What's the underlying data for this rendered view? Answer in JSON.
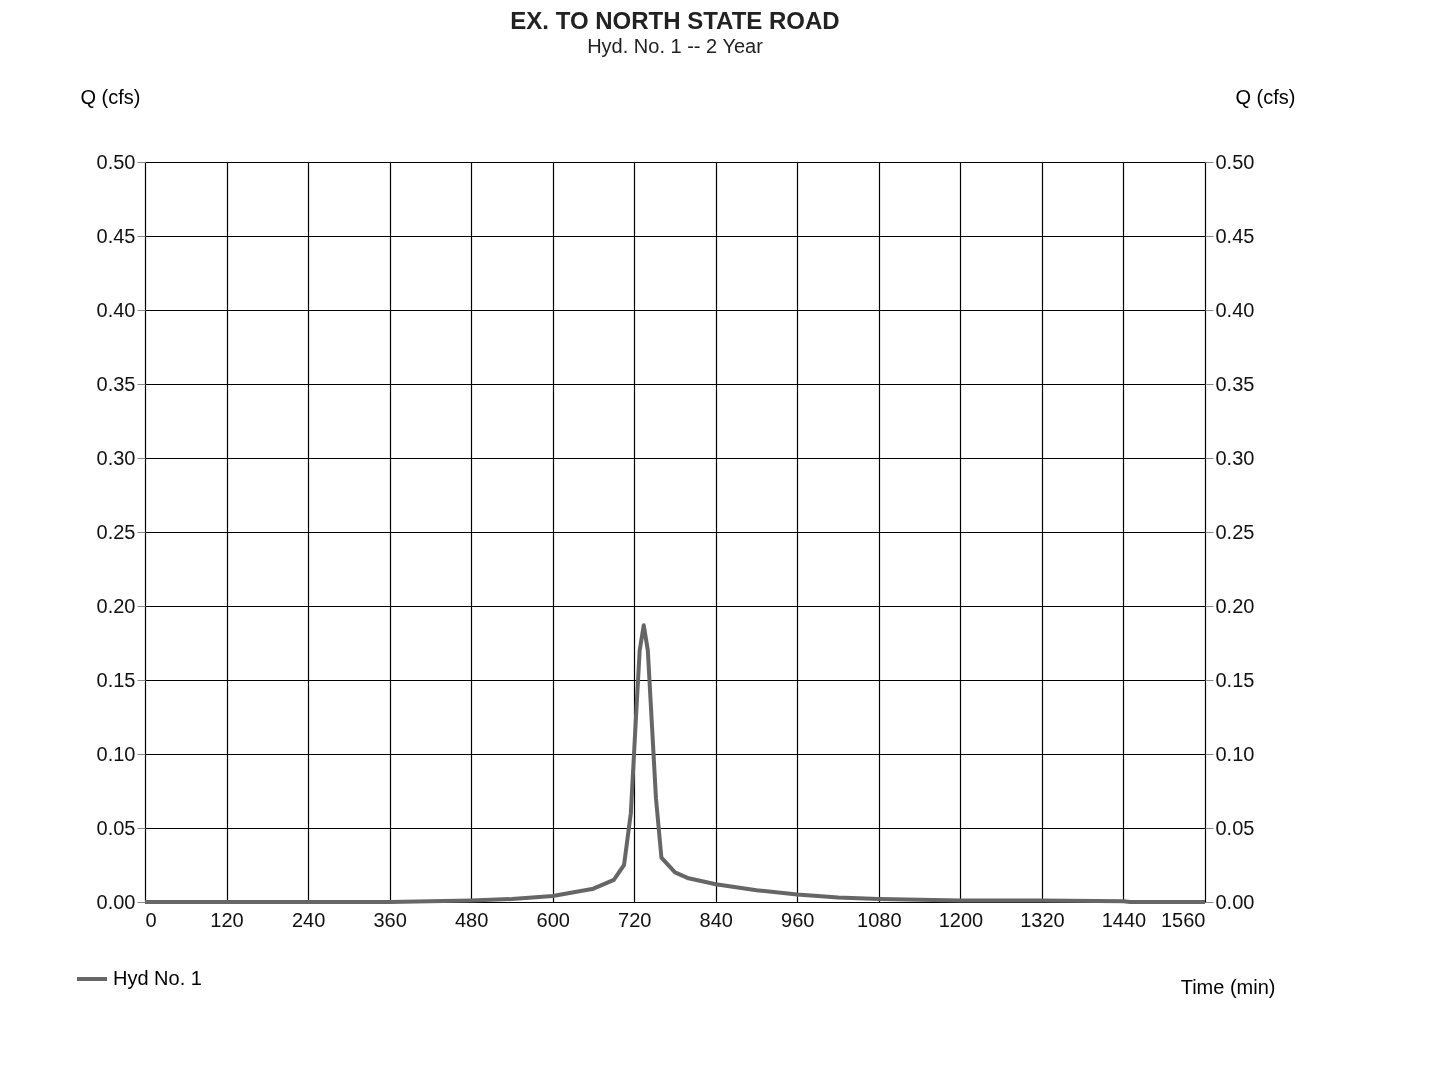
{
  "chart_data": {
    "type": "line",
    "title": "EX. TO NORTH STATE ROAD",
    "subtitle": "Hyd. No. 1 -- 2 Year",
    "xlabel": "Time (min)",
    "ylabel": "Q (cfs)",
    "y2label": "Q (cfs)",
    "xlim": [
      0,
      1560
    ],
    "xticks": [
      0,
      120,
      240,
      360,
      480,
      600,
      720,
      840,
      960,
      1080,
      1200,
      1320,
      1440,
      1560
    ],
    "ylim": [
      0,
      0.5
    ],
    "yticks": [
      {
        "value": 0,
        "label": "0.00"
      },
      0.05,
      {
        "value": 0.1,
        "label": "0.10"
      },
      0.15,
      {
        "value": 0.2,
        "label": "0.20"
      },
      0.25,
      {
        "value": 0.3,
        "label": "0.30"
      },
      0.35,
      {
        "value": 0.4,
        "label": "0.40"
      },
      0.45,
      {
        "value": 0.5,
        "label": "0.50"
      }
    ],
    "y2lim": [
      0,
      0.5
    ],
    "y2ticks": [
      {
        "value": 0,
        "label": "0.00"
      },
      0.05,
      {
        "value": 0.1,
        "label": "0.10"
      },
      0.15,
      {
        "value": 0.2,
        "label": "0.20"
      },
      0.25,
      {
        "value": 0.3,
        "label": "0.30"
      },
      0.35,
      {
        "value": 0.4,
        "label": "0.40"
      },
      0.45,
      {
        "value": 0.5,
        "label": "0.50"
      }
    ],
    "grid": true,
    "legend": "bottom left",
    "marker": "none",
    "line_style": "solid",
    "series": [
      {
        "name": "Hyd No. 1",
        "color": "#666666",
        "x": [
          0,
          120,
          240,
          360,
          480,
          540,
          600,
          660,
          690,
          705,
          715,
          722,
          728,
          734,
          740,
          746,
          752,
          760,
          780,
          800,
          840,
          900,
          960,
          1020,
          1080,
          1200,
          1320,
          1440,
          1450,
          1560
        ],
        "values": [
          0.0,
          0.0,
          0.0,
          0.0,
          0.001,
          0.002,
          0.004,
          0.009,
          0.015,
          0.025,
          0.06,
          0.12,
          0.17,
          0.187,
          0.17,
          0.12,
          0.07,
          0.03,
          0.02,
          0.016,
          0.012,
          0.008,
          0.005,
          0.003,
          0.002,
          0.001,
          0.001,
          0.0005,
          0.0,
          0.0
        ]
      }
    ]
  }
}
